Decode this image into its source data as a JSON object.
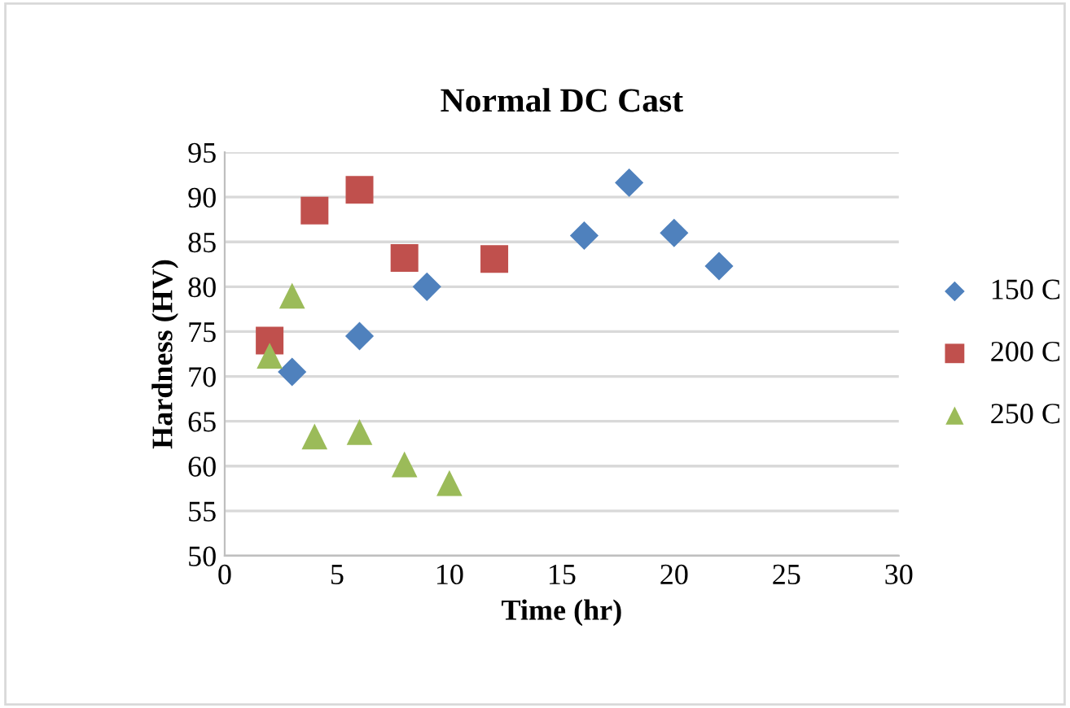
{
  "chart_data": {
    "type": "scatter",
    "title": "Normal DC Cast",
    "xlabel": "Time (hr)",
    "ylabel": "Hardness (HV)",
    "xlim": [
      0,
      30
    ],
    "xticks": [
      0,
      5,
      10,
      15,
      20,
      25,
      30
    ],
    "ylim": [
      50,
      95
    ],
    "yticks": [
      50,
      55,
      60,
      65,
      70,
      75,
      80,
      85,
      90,
      95
    ],
    "grid": "y",
    "legend": "right",
    "series": [
      {
        "name": "150 C",
        "color": "#4f81bd",
        "marker": "diamond",
        "x": [
          3,
          6,
          9,
          12,
          16,
          18,
          20,
          22
        ],
        "values": [
          70.5,
          74.5,
          80,
          null,
          85.7,
          91.6,
          86,
          82.3
        ]
      },
      {
        "name": "200 C",
        "color": "#c0504d",
        "marker": "square",
        "x": [
          2,
          4,
          6,
          8,
          12
        ],
        "values": [
          74,
          88.5,
          90.8,
          83.2,
          83.1
        ]
      },
      {
        "name": "250 C",
        "color": "#9bbb59",
        "marker": "triangle",
        "x": [
          2,
          3,
          4,
          6,
          8,
          10
        ],
        "values": [
          72.3,
          79,
          63.3,
          63.8,
          60.2,
          58.1
        ]
      }
    ]
  }
}
